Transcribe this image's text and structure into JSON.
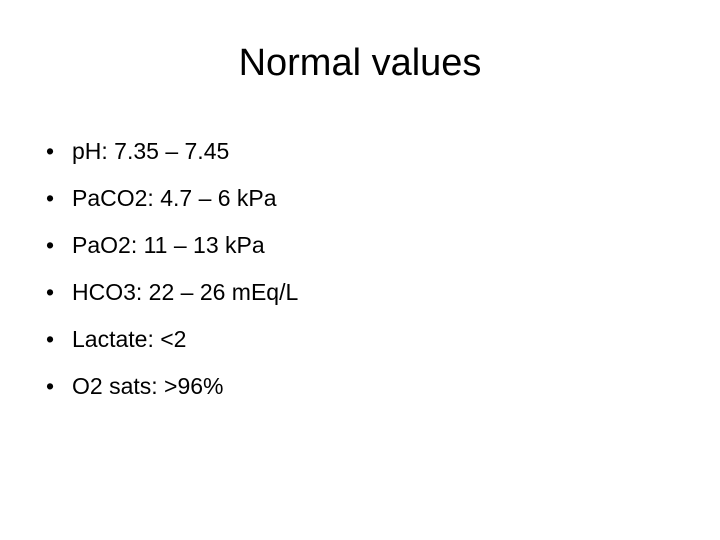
{
  "title": "Normal values",
  "bullets": [
    "pH: 7.35 – 7.45",
    "PaCO2: 4.7 – 6 kPa",
    "PaO2: 11 – 13 kPa",
    "HCO3: 22 – 26 mEq/L",
    "Lactate: <2",
    "O2 sats: >96%"
  ]
}
